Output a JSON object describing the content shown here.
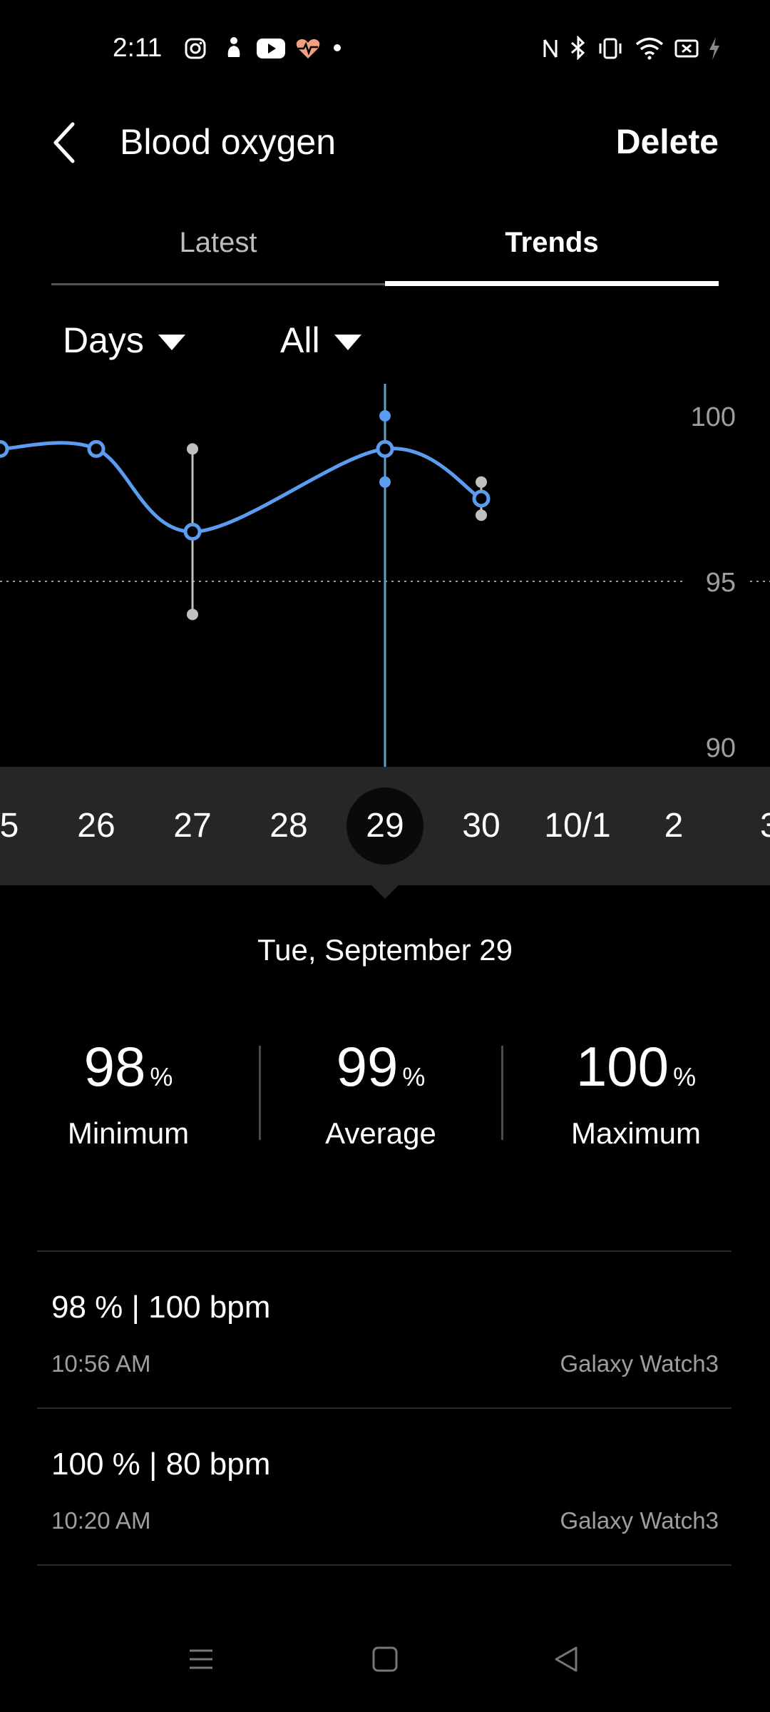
{
  "status_bar": {
    "time": "2:11",
    "left_icons": [
      "instagram-icon",
      "notification-icon",
      "youtube-icon",
      "health-icon",
      "dot-icon"
    ],
    "right_icons": [
      "nfc-icon",
      "bluetooth-icon",
      "vibrate-icon",
      "wifi-icon",
      "battery-icon",
      "charging-icon"
    ]
  },
  "header": {
    "title": "Blood oxygen",
    "delete_label": "Delete"
  },
  "tabs": [
    {
      "label": "Latest",
      "selected": false
    },
    {
      "label": "Trends",
      "selected": true
    }
  ],
  "filters": {
    "period": "Days",
    "source": "All"
  },
  "chart_data": {
    "type": "line",
    "y_ticks": [
      "100",
      "95",
      "90"
    ],
    "ylim": [
      90,
      100
    ],
    "reference_line": 95,
    "series": [
      {
        "points": [
          {
            "date": "25",
            "avg": 99
          },
          {
            "date": "26",
            "avg": 99
          },
          {
            "date": "27",
            "avg": 96.5,
            "min": 94,
            "max": 99
          },
          {
            "date": "29",
            "avg": 99,
            "min": 98,
            "max": 100
          },
          {
            "date": "30",
            "avg": 97.5,
            "min": 97,
            "max": 98
          }
        ]
      }
    ],
    "selected_date": "29",
    "colors": {
      "line": "#5b9cf0",
      "range": "#c0c0c0",
      "selection_line": "#5ba3c8"
    }
  },
  "date_strip": {
    "dates": [
      "5",
      "26",
      "27",
      "28",
      "29",
      "30",
      "10/1",
      "2",
      "3"
    ],
    "selected": "29"
  },
  "selected_day": {
    "label": "Tue, September 29"
  },
  "stats": [
    {
      "value": "98",
      "unit": "%",
      "label": "Minimum"
    },
    {
      "value": "99",
      "unit": "%",
      "label": "Average"
    },
    {
      "value": "100",
      "unit": "%",
      "label": "Maximum"
    }
  ],
  "records": [
    {
      "reading": "98 % | 100 bpm",
      "time": "10:56 AM",
      "device": "Galaxy Watch3"
    },
    {
      "reading": "100 % | 80 bpm",
      "time": "10:20 AM",
      "device": "Galaxy Watch3"
    }
  ],
  "nav_bar": {
    "icons": [
      "recent-apps-icon",
      "home-icon",
      "back-nav-icon"
    ]
  }
}
